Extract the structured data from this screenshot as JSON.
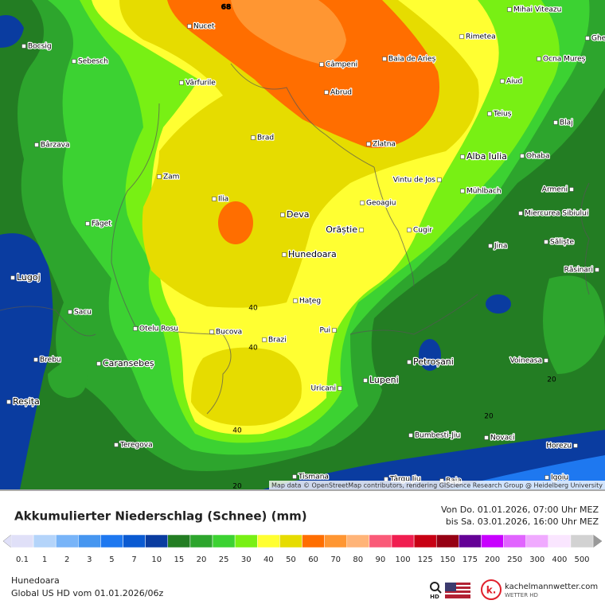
{
  "map": {
    "contour_labels": [
      "68",
      "40",
      "40",
      "40",
      "20",
      "20",
      "20"
    ],
    "places": [
      "Mihai Viteazu",
      "Gheja",
      "Nucet",
      "Rimetea",
      "Bocsig",
      "Sebesch",
      "Câmpeni",
      "Baia de Arieș",
      "Ocna Mureș",
      "Aiud",
      "Vârfurile",
      "Abrud",
      "Teiuș",
      "Blaj",
      "Brad",
      "Zlatna",
      "Bârzava",
      "Alba Iulia",
      "Ohaba",
      "Zam",
      "Vintu de Jos",
      "Mühlbach",
      "Armeni",
      "Ilia",
      "Geoagiu",
      "Deva",
      "Miercurea Sibiului",
      "Făget",
      "Orăștie",
      "Cugir",
      "Săliște",
      "Jina",
      "Hunedoara",
      "Răsinari",
      "Lugoj",
      "Hațeg",
      "Sacu",
      "Otelu Rosu",
      "Bucova",
      "Pui",
      "Brazi",
      "Brebu",
      "Caransebeș",
      "Petroșani",
      "Voineasa",
      "Lupeni",
      "Uricani",
      "Reșița",
      "Bumbesti-Jiu",
      "Novaci",
      "Teregova",
      "Horezu",
      "Igoiu",
      "Tismana",
      "Târgu Jiu",
      "Baia"
    ],
    "attribution": "Map data © OpenStreetMap contributors, rendering GIScience Research Group @ Heidelberg University"
  },
  "header": {
    "title": "Akkumulierter Niederschlag (Schnee) (mm)",
    "from": "Von Do. 01.01.2026, 07:00 Uhr MEZ",
    "to": "bis Sa. 03.01.2026, 16:00 Uhr MEZ"
  },
  "legend": {
    "values": [
      0.1,
      1,
      2,
      3,
      5,
      7,
      10,
      15,
      20,
      25,
      30,
      40,
      50,
      60,
      70,
      80,
      90,
      100,
      125,
      150,
      175,
      200,
      250,
      300,
      400,
      500
    ],
    "colors": [
      "#e0e0f8",
      "#b4d4fa",
      "#78b4f8",
      "#4696f0",
      "#1e78f0",
      "#0a5ad2",
      "#0a3ca0",
      "#237d23",
      "#2da52d",
      "#3cd232",
      "#78f014",
      "#ffff32",
      "#e6dc00",
      "#ff6e00",
      "#ff9632",
      "#ffb478",
      "#fa5a78",
      "#f01e50",
      "#c80014",
      "#960014",
      "#640096",
      "#c800ff",
      "#e164ff",
      "#f0aaff",
      "#fae6ff",
      "#d2d2d2"
    ]
  },
  "footer": {
    "region": "Hunedoara",
    "model": "Global US HD vom  01.01.2026/06z",
    "hd": "HD",
    "brand": "kachelmannwetter.com",
    "brand_sub": "WETTER HD",
    "logo": "k."
  }
}
